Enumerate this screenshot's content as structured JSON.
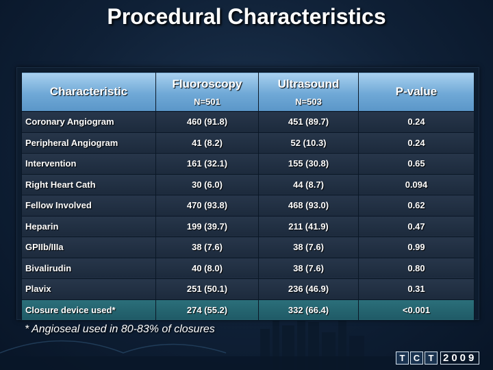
{
  "slide": {
    "title": "Procedural Characteristics",
    "footnote": "* Angioseal used in 80-83% of closures"
  },
  "table": {
    "headers": {
      "characteristic": "Characteristic",
      "fluoroscopy": "Fluoroscopy",
      "fluoroscopy_n": "N=501",
      "ultrasound": "Ultrasound",
      "ultrasound_n": "N=503",
      "pvalue": "P-value"
    },
    "rows": [
      {
        "label": "Coronary Angiogram",
        "fluoro": "460 (91.8)",
        "us": "451 (89.7)",
        "p": "0.24"
      },
      {
        "label": "Peripheral Angiogram",
        "fluoro": "41 (8.2)",
        "us": "52 (10.3)",
        "p": "0.24"
      },
      {
        "label": "Intervention",
        "fluoro": "161 (32.1)",
        "us": "155 (30.8)",
        "p": "0.65"
      },
      {
        "label": "Right Heart Cath",
        "fluoro": "30 (6.0)",
        "us": "44 (8.7)",
        "p": "0.094"
      },
      {
        "label": "Fellow Involved",
        "fluoro": "470 (93.8)",
        "us": "468 (93.0)",
        "p": "0.62"
      },
      {
        "label": "Heparin",
        "fluoro": "199 (39.7)",
        "us": "211 (41.9)",
        "p": "0.47"
      },
      {
        "label": "GPIIb/IIIa",
        "fluoro": "38 (7.6)",
        "us": "38 (7.6)",
        "p": "0.99"
      },
      {
        "label": "Bivalirudin",
        "fluoro": "40 (8.0)",
        "us": "38 (7.6)",
        "p": "0.80"
      },
      {
        "label": "Plavix",
        "fluoro": "251 (50.1)",
        "us": "236 (46.9)",
        "p": "0.31"
      },
      {
        "label": "Closure device used*",
        "fluoro": "274 (55.2)",
        "us": "332 (66.4)",
        "p": "<0.001"
      }
    ],
    "highlight_row": 9
  },
  "logo": {
    "letters": [
      "T",
      "C",
      "T"
    ],
    "year": "2009"
  },
  "colors": {
    "header_blue": "#6fa8d6",
    "row_dark": "#1c2a3c",
    "highlight_teal": "#1f5a66",
    "background": "#0f2036"
  }
}
